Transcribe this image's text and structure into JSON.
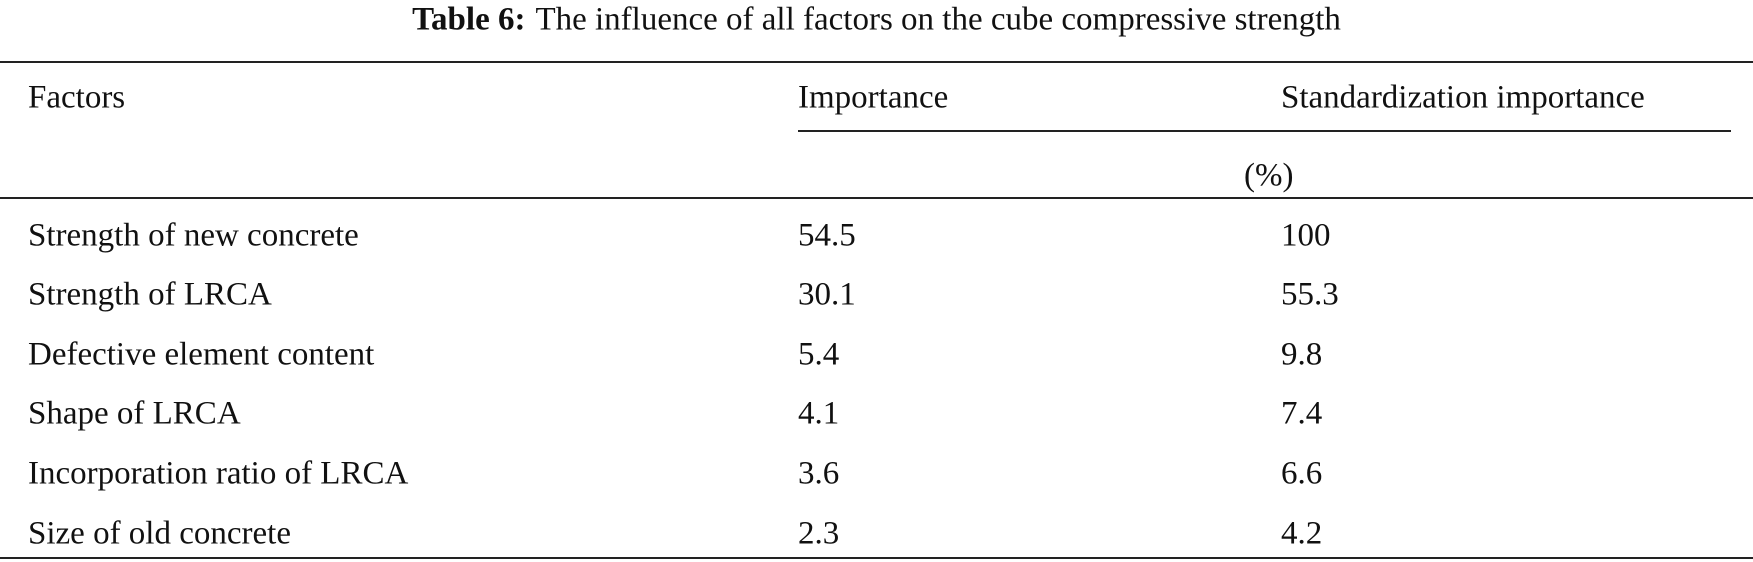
{
  "title": {
    "label": "Table 6:",
    "text": "The influence of all factors on the cube compressive strength"
  },
  "table": {
    "header": [
      "Factors",
      "Importance",
      "Standardization importance"
    ],
    "header_unit": "(%)",
    "rows": [
      [
        "Strength of new concrete",
        54.5,
        100
      ],
      [
        "Strength of LRCA",
        30.1,
        55.3
      ],
      [
        "Defective element content",
        5.4,
        9.8
      ],
      [
        "Shape of LRCA",
        4.1,
        7.4
      ],
      [
        "Incorporation ratio of LRCA",
        3.6,
        6.6
      ],
      [
        "Size of old concrete",
        2.3,
        4.2
      ]
    ]
  }
}
